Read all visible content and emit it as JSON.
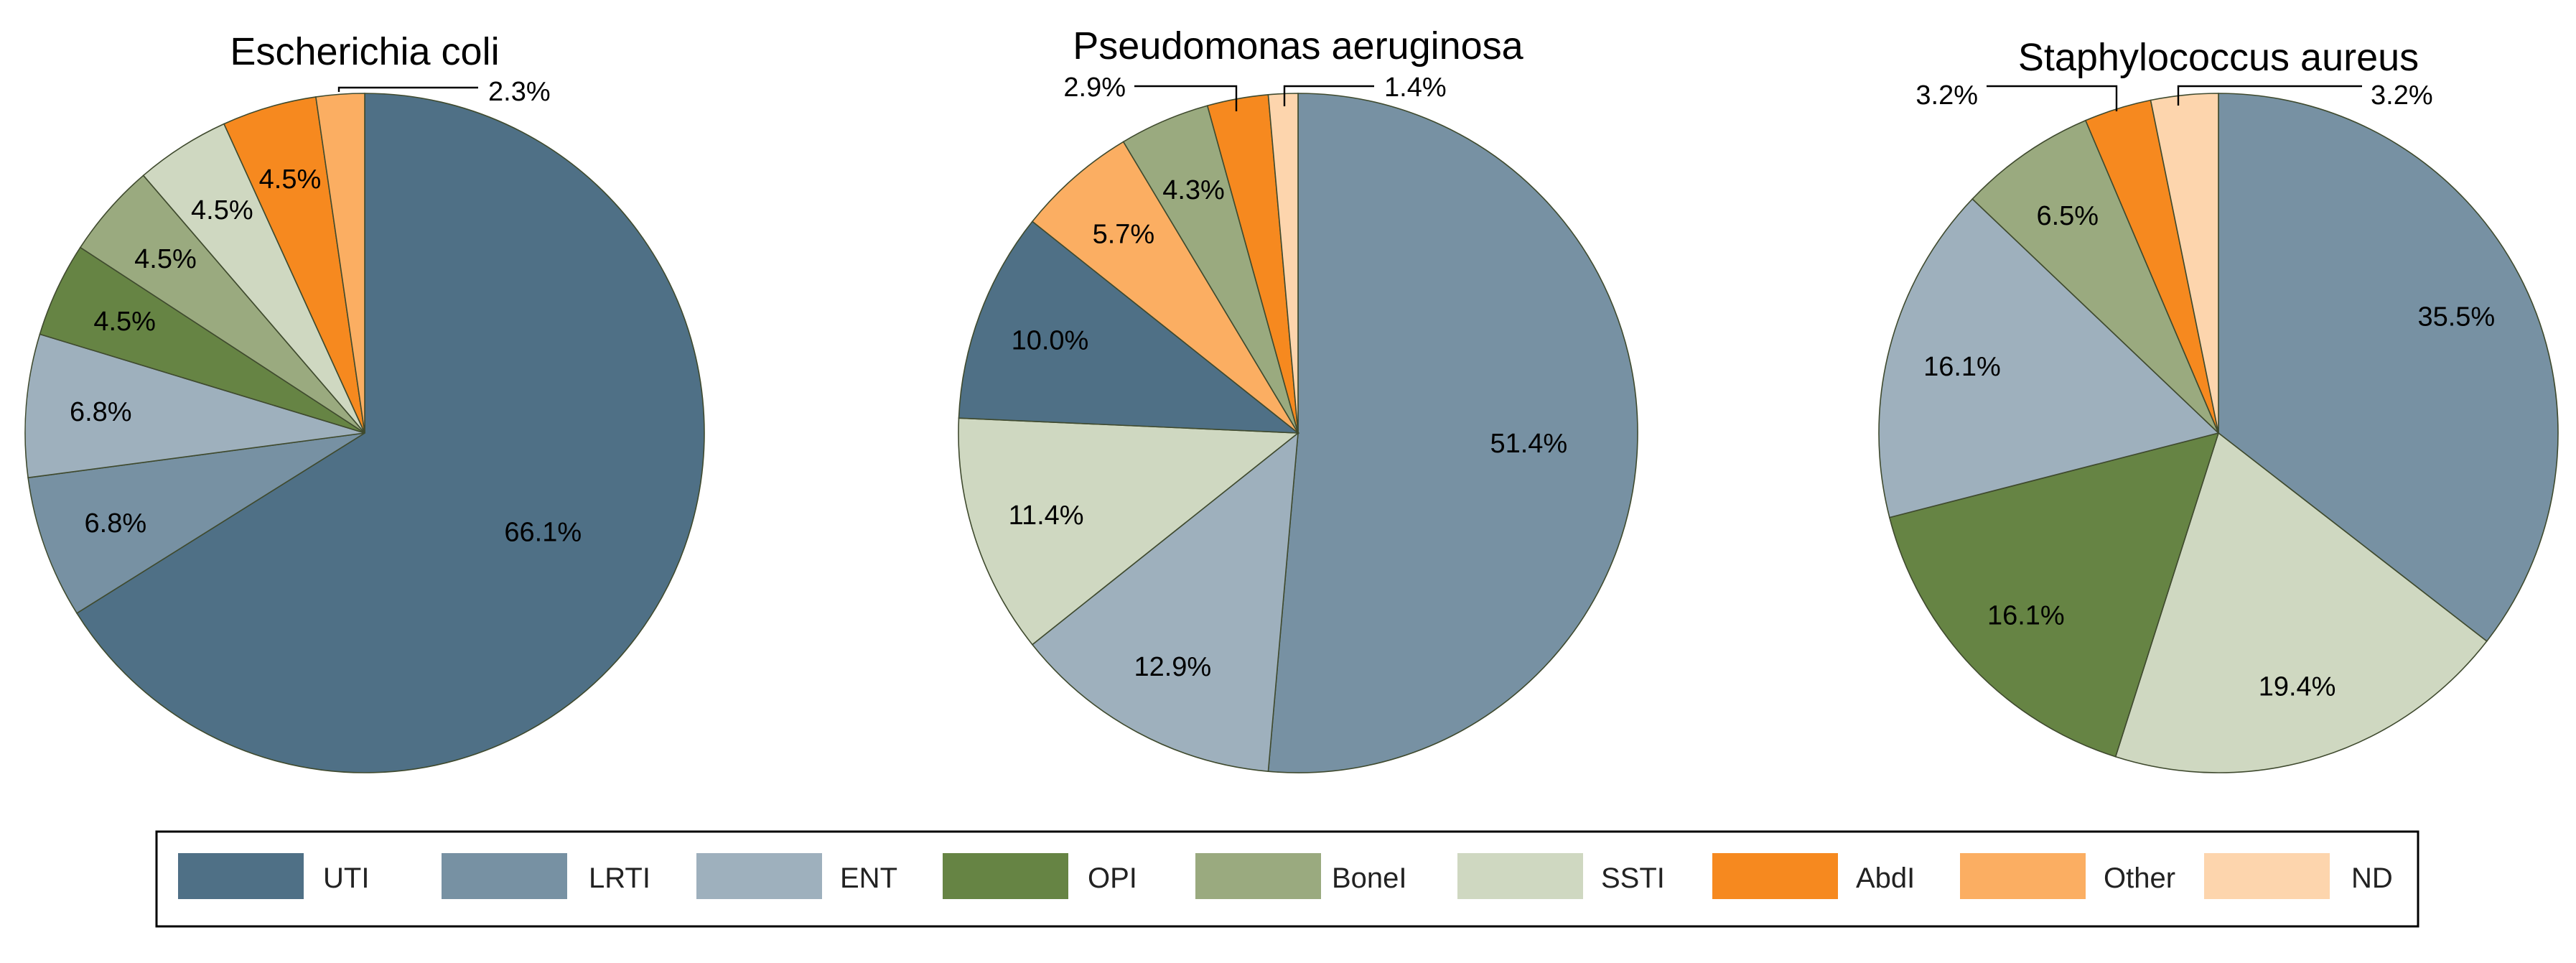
{
  "chart_data": [
    {
      "type": "pie",
      "title": "Escherichia coli",
      "categories": [
        "UTI",
        "LRTI",
        "ENT",
        "OPI",
        "BoneI",
        "SSTI",
        "AbdI",
        "Other",
        "ND"
      ],
      "values": [
        66.1,
        6.8,
        6.8,
        4.5,
        4.5,
        4.5,
        4.5,
        2.3,
        0
      ],
      "labels": [
        "66.1%",
        "6.8%",
        "6.8%",
        "4.5%",
        "4.5%",
        "4.5%",
        "4.5%",
        "2.3%",
        ""
      ]
    },
    {
      "type": "pie",
      "title": "Pseudomonas aeruginosa",
      "categories": [
        "UTI",
        "LRTI",
        "ENT",
        "OPI",
        "BoneI",
        "SSTI",
        "AbdI",
        "Other",
        "ND"
      ],
      "values": [
        10.0,
        51.4,
        12.9,
        0,
        4.3,
        11.4,
        2.9,
        5.7,
        1.4
      ],
      "labels": [
        "10.0%",
        "51.4%",
        "12.9%",
        "",
        "4.3%",
        "11.4%",
        "2.9%",
        "5.7%",
        "1.4%"
      ]
    },
    {
      "type": "pie",
      "title": "Staphylococcus aureus",
      "categories": [
        "UTI",
        "LRTI",
        "ENT",
        "OPI",
        "BoneI",
        "SSTI",
        "AbdI",
        "Other",
        "ND"
      ],
      "values": [
        0,
        35.5,
        16.1,
        16.1,
        6.5,
        19.4,
        3.2,
        0,
        3.2
      ],
      "labels": [
        "",
        "35.5%",
        "16.1%",
        "16.1%",
        "6.5%",
        "19.4%",
        "3.2%",
        "",
        "3.2%"
      ]
    }
  ],
  "legend": {
    "placement": "bottom",
    "items": [
      {
        "label": "UTI",
        "color": "#4f7086"
      },
      {
        "label": "LRTI",
        "color": "#7791a3"
      },
      {
        "label": "ENT",
        "color": "#9eb0bd"
      },
      {
        "label": "OPI",
        "color": "#668444"
      },
      {
        "label": "BoneI",
        "color": "#9aaa7f"
      },
      {
        "label": "SSTI",
        "color": "#cfd8c1"
      },
      {
        "label": "AbdI",
        "color": "#f6891f"
      },
      {
        "label": "Other",
        "color": "#fbae62"
      },
      {
        "label": "ND",
        "color": "#fdd5ad"
      }
    ]
  }
}
